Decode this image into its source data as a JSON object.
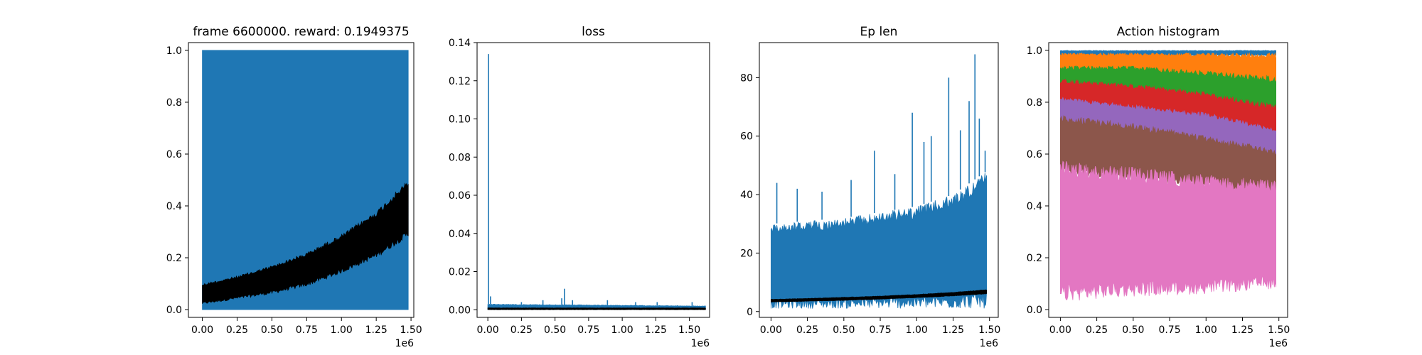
{
  "chart_data": [
    {
      "type": "area",
      "title": "frame 6600000. reward: 0.1949375",
      "xlim": [
        -0.1,
        1.52
      ],
      "ylim": [
        -0.03,
        1.03
      ],
      "xticks": [
        "0.00",
        "0.25",
        "0.50",
        "0.75",
        "1.00",
        "1.25",
        "1.50"
      ],
      "xtick_values": [
        0,
        0.25,
        0.5,
        0.75,
        1.0,
        1.25,
        1.5
      ],
      "yticks": [
        "0.0",
        "0.2",
        "0.4",
        "0.6",
        "0.8",
        "1.0"
      ],
      "ytick_values": [
        0,
        0.2,
        0.4,
        0.6,
        0.8,
        1.0
      ],
      "x_offset_label": "1e6",
      "grid": false,
      "series": [
        {
          "color": "#1f77b4",
          "kind": "band",
          "x": [
            0,
            1.48
          ],
          "low": [
            0,
            0
          ],
          "high": [
            1,
            1
          ]
        },
        {
          "color": "#000000",
          "kind": "noisy",
          "x": [
            0,
            0.25,
            0.5,
            0.75,
            1.0,
            1.25,
            1.48
          ],
          "low": [
            0.02,
            0.04,
            0.06,
            0.09,
            0.14,
            0.2,
            0.28
          ],
          "high": [
            0.1,
            0.13,
            0.17,
            0.22,
            0.29,
            0.38,
            0.5
          ]
        }
      ]
    },
    {
      "type": "line",
      "title": "loss",
      "xlim": [
        -0.08,
        1.65
      ],
      "ylim": [
        -0.004,
        0.14
      ],
      "xticks": [
        "0.00",
        "0.25",
        "0.50",
        "0.75",
        "1.00",
        "1.25",
        "1.50"
      ],
      "xtick_values": [
        0,
        0.25,
        0.5,
        0.75,
        1.0,
        1.25,
        1.5
      ],
      "yticks": [
        "0.00",
        "0.02",
        "0.04",
        "0.06",
        "0.08",
        "0.10",
        "0.12",
        "0.14"
      ],
      "ytick_values": [
        0,
        0.02,
        0.04,
        0.06,
        0.08,
        0.1,
        0.12,
        0.14
      ],
      "x_offset_label": "1e6",
      "grid": false,
      "spikes": [
        [
          0.005,
          0.134
        ],
        [
          0.02,
          0.007
        ],
        [
          0.25,
          0.004
        ],
        [
          0.41,
          0.005
        ],
        [
          0.55,
          0.006
        ],
        [
          0.57,
          0.011
        ],
        [
          0.63,
          0.005
        ],
        [
          0.89,
          0.005
        ],
        [
          1.1,
          0.004
        ],
        [
          1.26,
          0.004
        ],
        [
          1.52,
          0.004
        ]
      ],
      "series": [
        {
          "color": "#1f77b4",
          "kind": "noisy",
          "x": [
            0,
            1.62
          ],
          "low": [
            0,
            0
          ],
          "high": [
            0.003,
            0.002
          ]
        },
        {
          "color": "#000000",
          "kind": "noisy",
          "x": [
            0,
            1.62
          ],
          "low": [
            0,
            0
          ],
          "high": [
            0.001,
            0.001
          ]
        }
      ]
    },
    {
      "type": "line",
      "title": "Ep len",
      "xlim": [
        -0.08,
        1.56
      ],
      "ylim": [
        -2,
        92
      ],
      "xticks": [
        "0.00",
        "0.25",
        "0.50",
        "0.75",
        "1.00",
        "1.25",
        "1.50"
      ],
      "xtick_values": [
        0,
        0.25,
        0.5,
        0.75,
        1.0,
        1.25,
        1.5
      ],
      "yticks": [
        "0",
        "20",
        "40",
        "60",
        "80"
      ],
      "ytick_values": [
        0,
        20,
        40,
        60,
        80
      ],
      "x_offset_label": "1e6",
      "grid": false,
      "spikes": [
        [
          0.04,
          44
        ],
        [
          0.18,
          42
        ],
        [
          0.35,
          41
        ],
        [
          0.55,
          45
        ],
        [
          0.71,
          55
        ],
        [
          0.85,
          47
        ],
        [
          0.97,
          68
        ],
        [
          1.05,
          58
        ],
        [
          1.1,
          60
        ],
        [
          1.22,
          80
        ],
        [
          1.3,
          62
        ],
        [
          1.36,
          72
        ],
        [
          1.4,
          88
        ],
        [
          1.43,
          66
        ],
        [
          1.47,
          55
        ]
      ],
      "series": [
        {
          "color": "#1f77b4",
          "kind": "noisy",
          "x": [
            0,
            0.25,
            0.5,
            0.75,
            1.0,
            1.25,
            1.48
          ],
          "low": [
            1,
            1,
            1,
            1,
            1,
            1,
            1
          ],
          "high": [
            30,
            31,
            32,
            34,
            36,
            40,
            48
          ]
        },
        {
          "color": "#000000",
          "kind": "noisy",
          "x": [
            0,
            0.25,
            0.5,
            0.75,
            1.0,
            1.25,
            1.48
          ],
          "low": [
            3.2,
            3.5,
            3.8,
            4.2,
            4.7,
            5.3,
            6.0
          ],
          "high": [
            4.2,
            4.5,
            4.9,
            5.3,
            5.9,
            6.6,
            7.5
          ]
        }
      ]
    },
    {
      "type": "area",
      "title": "Action histogram",
      "xlim": [
        -0.08,
        1.56
      ],
      "ylim": [
        -0.03,
        1.03
      ],
      "xticks": [
        "0.00",
        "0.25",
        "0.50",
        "0.75",
        "1.00",
        "1.25",
        "1.50"
      ],
      "xtick_values": [
        0,
        0.25,
        0.5,
        0.75,
        1.0,
        1.25,
        1.5
      ],
      "yticks": [
        "0.0",
        "0.2",
        "0.4",
        "0.6",
        "0.8",
        "1.0"
      ],
      "ytick_values": [
        0,
        0.2,
        0.4,
        0.6,
        0.8,
        1.0
      ],
      "x_offset_label": "1e6",
      "grid": false,
      "series": [
        {
          "color": "#1f77b4",
          "kind": "noisy",
          "x": [
            0,
            1.48
          ],
          "low": [
            0.98,
            0.98
          ],
          "high": [
            1.0,
            1.0
          ]
        },
        {
          "color": "#ff7f0e",
          "kind": "noisy",
          "x": [
            0,
            0.5,
            1.0,
            1.48
          ],
          "low": [
            0.88,
            0.9,
            0.88,
            0.82
          ],
          "high": [
            0.99,
            0.99,
            0.99,
            0.99
          ]
        },
        {
          "color": "#2ca02c",
          "kind": "noisy",
          "x": [
            0,
            0.5,
            1.0,
            1.48
          ],
          "low": [
            0.8,
            0.8,
            0.76,
            0.68
          ],
          "high": [
            0.94,
            0.94,
            0.92,
            0.9
          ]
        },
        {
          "color": "#d62728",
          "kind": "noisy",
          "x": [
            0,
            0.5,
            1.0,
            1.48
          ],
          "low": [
            0.75,
            0.72,
            0.68,
            0.6
          ],
          "high": [
            0.89,
            0.87,
            0.84,
            0.79
          ]
        },
        {
          "color": "#9467bd",
          "kind": "noisy",
          "x": [
            0,
            0.5,
            1.0,
            1.48
          ],
          "low": [
            0.68,
            0.65,
            0.6,
            0.55
          ],
          "high": [
            0.82,
            0.79,
            0.76,
            0.7
          ]
        },
        {
          "color": "#8c564b",
          "kind": "noisy",
          "x": [
            0,
            0.5,
            1.0,
            1.48
          ],
          "low": [
            0.52,
            0.5,
            0.47,
            0.42
          ],
          "high": [
            0.75,
            0.72,
            0.67,
            0.62
          ]
        },
        {
          "color": "#e377c2",
          "kind": "noisy",
          "x": [
            0,
            0.5,
            1.0,
            1.48
          ],
          "low": [
            0.03,
            0.05,
            0.06,
            0.08
          ],
          "high": [
            0.58,
            0.55,
            0.52,
            0.5
          ]
        }
      ]
    }
  ]
}
